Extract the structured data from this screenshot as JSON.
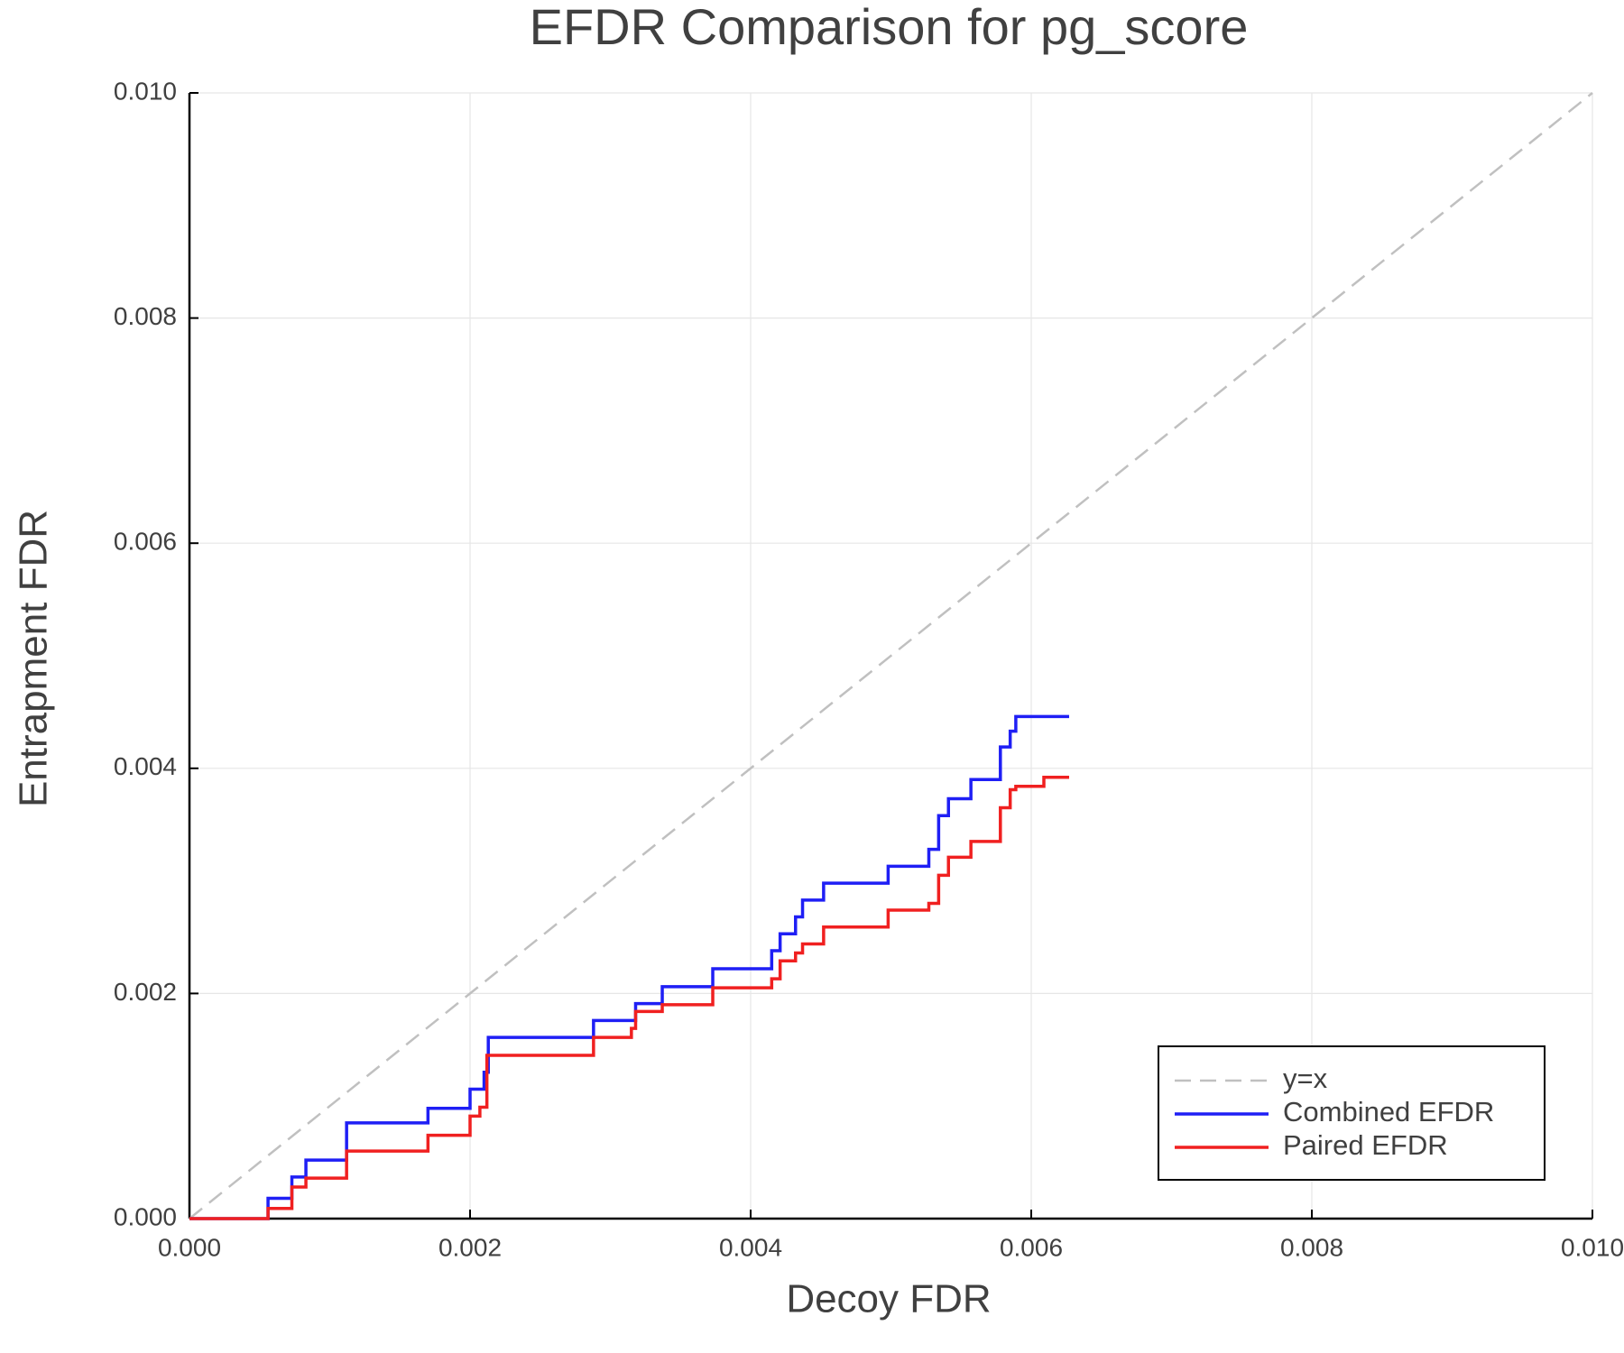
{
  "chart_data": {
    "type": "line",
    "title": "EFDR Comparison for pg_score",
    "xlabel": "Decoy FDR",
    "ylabel": "Entrapment FDR",
    "xlim": [
      0,
      0.01
    ],
    "ylim": [
      0,
      0.01
    ],
    "xticks": [
      {
        "value": 0,
        "label": "0.000"
      },
      {
        "value": 0.002,
        "label": "0.002"
      },
      {
        "value": 0.004,
        "label": "0.004"
      },
      {
        "value": 0.006,
        "label": "0.006"
      },
      {
        "value": 0.008,
        "label": "0.008"
      },
      {
        "value": 0.01,
        "label": "0.010"
      }
    ],
    "yticks": [
      {
        "value": 0,
        "label": "0.000"
      },
      {
        "value": 0.002,
        "label": "0.002"
      },
      {
        "value": 0.004,
        "label": "0.004"
      },
      {
        "value": 0.006,
        "label": "0.006"
      },
      {
        "value": 0.008,
        "label": "0.008"
      },
      {
        "value": 0.01,
        "label": "0.010"
      }
    ],
    "grid": true,
    "legend": "lower right",
    "series": [
      {
        "name": "y=x",
        "color": "#c0c0c0",
        "dashed": true,
        "x": [
          0,
          0.01
        ],
        "values": [
          0,
          0.01
        ]
      },
      {
        "name": "Combined EFDR",
        "color": "#1f1ff5",
        "dashed": false,
        "x": [
          0,
          0.00056,
          0.00056,
          0.00073,
          0.00073,
          0.00083,
          0.00083,
          0.00112,
          0.00112,
          0.0017,
          0.0017,
          0.002,
          0.002,
          0.0021,
          0.0021,
          0.00213,
          0.00213,
          0.00288,
          0.00288,
          0.00318,
          0.00318,
          0.00337,
          0.00337,
          0.00373,
          0.00373,
          0.00415,
          0.00415,
          0.00421,
          0.00421,
          0.00432,
          0.00432,
          0.00437,
          0.00437,
          0.00452,
          0.00452,
          0.00498,
          0.00498,
          0.00527,
          0.00527,
          0.00534,
          0.00534,
          0.00541,
          0.00541,
          0.00557,
          0.00557,
          0.00578,
          0.00578,
          0.00585,
          0.00585,
          0.00589,
          0.00589,
          0.00627
        ],
        "values": [
          0,
          0,
          0.00018,
          0.00018,
          0.00037,
          0.00037,
          0.00052,
          0.00052,
          0.00085,
          0.00085,
          0.00098,
          0.00098,
          0.00115,
          0.00115,
          0.0013,
          0.0013,
          0.00161,
          0.00161,
          0.00176,
          0.00176,
          0.00191,
          0.00191,
          0.00206,
          0.00206,
          0.00222,
          0.00222,
          0.00238,
          0.00238,
          0.00253,
          0.00253,
          0.00268,
          0.00268,
          0.00283,
          0.00283,
          0.00298,
          0.00298,
          0.00313,
          0.00313,
          0.00328,
          0.00328,
          0.00358,
          0.00358,
          0.00373,
          0.00373,
          0.0039,
          0.0039,
          0.00419,
          0.00419,
          0.00433,
          0.00433,
          0.00446,
          0.00446
        ]
      },
      {
        "name": "Paired EFDR",
        "color": "#f02020",
        "dashed": false,
        "x": [
          0,
          0.00056,
          0.00056,
          0.00073,
          0.00073,
          0.00083,
          0.00083,
          0.00112,
          0.00112,
          0.0017,
          0.0017,
          0.002,
          0.002,
          0.00207,
          0.00207,
          0.00212,
          0.00212,
          0.00288,
          0.00288,
          0.00315,
          0.00315,
          0.00318,
          0.00318,
          0.00337,
          0.00337,
          0.00373,
          0.00373,
          0.00415,
          0.00415,
          0.00421,
          0.00421,
          0.00432,
          0.00432,
          0.00437,
          0.00437,
          0.00452,
          0.00452,
          0.00498,
          0.00498,
          0.00527,
          0.00527,
          0.00534,
          0.00534,
          0.00541,
          0.00541,
          0.00557,
          0.00557,
          0.00578,
          0.00578,
          0.00585,
          0.00585,
          0.00589,
          0.00589,
          0.00609,
          0.00609,
          0.00627
        ],
        "values": [
          0,
          0,
          9e-05,
          9e-05,
          0.00028,
          0.00028,
          0.00036,
          0.00036,
          0.0006,
          0.0006,
          0.00074,
          0.00074,
          0.00091,
          0.00091,
          0.00099,
          0.00099,
          0.00145,
          0.00145,
          0.00161,
          0.00161,
          0.00169,
          0.00169,
          0.00184,
          0.00184,
          0.0019,
          0.0019,
          0.00205,
          0.00205,
          0.00213,
          0.00213,
          0.00229,
          0.00229,
          0.00236,
          0.00236,
          0.00244,
          0.00244,
          0.00259,
          0.00259,
          0.00274,
          0.00274,
          0.0028,
          0.0028,
          0.00305,
          0.00305,
          0.00321,
          0.00321,
          0.00335,
          0.00335,
          0.00365,
          0.00365,
          0.00381,
          0.00381,
          0.00384,
          0.00384,
          0.00392,
          0.00392
        ]
      }
    ]
  }
}
